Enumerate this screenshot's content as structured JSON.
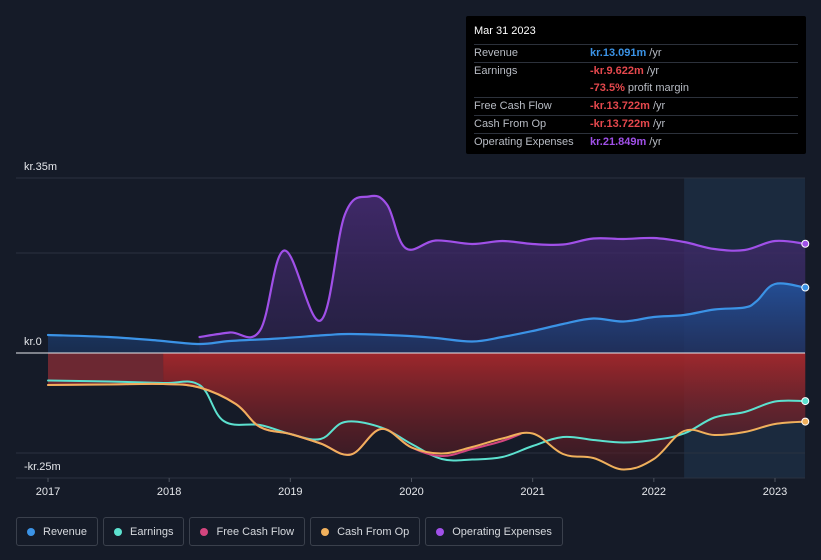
{
  "chart_data": {
    "type": "area",
    "y_axis_labels": {
      "top": "kr.35m",
      "zero": "kr.0",
      "bottom": "-kr.25m"
    },
    "ylim": [
      -25,
      35
    ],
    "xlim": [
      2016.9,
      2023.25
    ],
    "x_ticks": [
      {
        "value": 2017,
        "label": "2017"
      },
      {
        "value": 2018,
        "label": "2018"
      },
      {
        "value": 2019,
        "label": "2019"
      },
      {
        "value": 2020,
        "label": "2020"
      },
      {
        "value": 2021,
        "label": "2021"
      },
      {
        "value": 2022,
        "label": "2022"
      },
      {
        "value": 2023,
        "label": "2023"
      }
    ],
    "highlight_start": 2022.25,
    "series": [
      {
        "name": "Revenue",
        "key": "revenue",
        "color": "#3b93e6",
        "fill": true,
        "points": [
          [
            2017,
            3.6
          ],
          [
            2017.5,
            3.2
          ],
          [
            2017.9,
            2.5
          ],
          [
            2018.25,
            1.8
          ],
          [
            2018.5,
            2.4
          ],
          [
            2018.9,
            2.9
          ],
          [
            2019.3,
            3.6
          ],
          [
            2019.5,
            3.8
          ],
          [
            2019.9,
            3.5
          ],
          [
            2020.2,
            3.0
          ],
          [
            2020.5,
            2.3
          ],
          [
            2020.75,
            3.2
          ],
          [
            2021,
            4.4
          ],
          [
            2021.25,
            5.8
          ],
          [
            2021.5,
            6.9
          ],
          [
            2021.75,
            6.3
          ],
          [
            2022,
            7.2
          ],
          [
            2022.25,
            7.6
          ],
          [
            2022.5,
            8.7
          ],
          [
            2022.75,
            9.1
          ],
          [
            2022.85,
            10.4
          ],
          [
            2023,
            13.8
          ],
          [
            2023.25,
            13.09
          ]
        ]
      },
      {
        "name": "Operating Expenses",
        "key": "opex",
        "color": "#a050e8",
        "fill": true,
        "points": [
          [
            2018.25,
            3.2
          ],
          [
            2018.5,
            4.1
          ],
          [
            2018.75,
            4.5
          ],
          [
            2018.95,
            20.5
          ],
          [
            2019.25,
            6.5
          ],
          [
            2019.45,
            27.7
          ],
          [
            2019.65,
            31.3
          ],
          [
            2019.8,
            29.6
          ],
          [
            2019.95,
            21.0
          ],
          [
            2020.2,
            22.5
          ],
          [
            2020.5,
            21.8
          ],
          [
            2020.75,
            22.4
          ],
          [
            2021,
            21.8
          ],
          [
            2021.25,
            21.7
          ],
          [
            2021.5,
            22.9
          ],
          [
            2021.75,
            22.8
          ],
          [
            2022,
            23.0
          ],
          [
            2022.25,
            22.2
          ],
          [
            2022.5,
            20.8
          ],
          [
            2022.75,
            20.6
          ],
          [
            2023,
            22.4
          ],
          [
            2023.25,
            21.85
          ]
        ]
      },
      {
        "name": "Earnings",
        "key": "earnings",
        "color": "#5ce1cf",
        "fill": false,
        "points": [
          [
            2017,
            -5.5
          ],
          [
            2017.5,
            -5.7
          ],
          [
            2017.95,
            -6.0
          ],
          [
            2018.25,
            -6.4
          ],
          [
            2018.45,
            -13.6
          ],
          [
            2018.75,
            -14.4
          ],
          [
            2019.0,
            -16.2
          ],
          [
            2019.25,
            -17.2
          ],
          [
            2019.45,
            -13.8
          ],
          [
            2019.75,
            -14.9
          ],
          [
            2020.0,
            -18.2
          ],
          [
            2020.25,
            -21.2
          ],
          [
            2020.5,
            -21.3
          ],
          [
            2020.75,
            -20.8
          ],
          [
            2021,
            -18.6
          ],
          [
            2021.25,
            -16.8
          ],
          [
            2021.5,
            -17.4
          ],
          [
            2021.75,
            -17.9
          ],
          [
            2022,
            -17.4
          ],
          [
            2022.25,
            -16.1
          ],
          [
            2022.5,
            -12.9
          ],
          [
            2022.75,
            -11.8
          ],
          [
            2023,
            -9.7
          ],
          [
            2023.25,
            -9.62
          ]
        ]
      },
      {
        "name": "Free Cash Flow",
        "key": "fcf",
        "color": "#d3457e",
        "fill": false,
        "points": [
          [
            2017,
            -6.4
          ],
          [
            2017.5,
            -6.3
          ],
          [
            2017.95,
            -6.2
          ],
          [
            2018.25,
            -6.9
          ],
          [
            2018.55,
            -10.2
          ],
          [
            2018.75,
            -14.8
          ],
          [
            2019.0,
            -16.2
          ],
          [
            2019.25,
            -18.1
          ],
          [
            2019.5,
            -20.3
          ],
          [
            2019.75,
            -15.2
          ],
          [
            2020.0,
            -18.9
          ],
          [
            2020.25,
            -20.6
          ],
          [
            2020.5,
            -19.2
          ],
          [
            2020.75,
            -17.6
          ],
          [
            2020.9,
            -16.2
          ]
        ]
      },
      {
        "name": "Cash From Op",
        "key": "cfo",
        "color": "#f0b05c",
        "fill": false,
        "points": [
          [
            2017,
            -6.4
          ],
          [
            2017.5,
            -6.3
          ],
          [
            2017.95,
            -6.2
          ],
          [
            2018.25,
            -6.9
          ],
          [
            2018.55,
            -10.2
          ],
          [
            2018.75,
            -14.8
          ],
          [
            2019.0,
            -16.2
          ],
          [
            2019.25,
            -18.1
          ],
          [
            2019.5,
            -20.3
          ],
          [
            2019.75,
            -15.2
          ],
          [
            2020.0,
            -18.9
          ],
          [
            2020.25,
            -20.1
          ],
          [
            2020.5,
            -18.8
          ],
          [
            2020.75,
            -17.1
          ],
          [
            2021,
            -16.1
          ],
          [
            2021.25,
            -20.2
          ],
          [
            2021.5,
            -21.0
          ],
          [
            2021.75,
            -23.3
          ],
          [
            2022,
            -21.2
          ],
          [
            2022.25,
            -15.6
          ],
          [
            2022.5,
            -16.4
          ],
          [
            2022.75,
            -15.8
          ],
          [
            2023,
            -14.2
          ],
          [
            2023.25,
            -13.72
          ]
        ]
      }
    ]
  },
  "tooltip": {
    "date": "Mar 31 2023",
    "rows": [
      {
        "label": "Revenue",
        "value": "kr.13.091m",
        "unit": "/yr",
        "color": "#3b93e6"
      },
      {
        "label": "Earnings",
        "value": "-kr.9.622m",
        "unit": "/yr",
        "color": "#e5484d"
      },
      {
        "label": "",
        "value": "-73.5%",
        "unit": "profit margin",
        "color": "#e5484d",
        "sub": true
      },
      {
        "label": "Free Cash Flow",
        "value": "-kr.13.722m",
        "unit": "/yr",
        "color": "#e5484d"
      },
      {
        "label": "Cash From Op",
        "value": "-kr.13.722m",
        "unit": "/yr",
        "color": "#e5484d"
      },
      {
        "label": "Operating Expenses",
        "value": "kr.21.849m",
        "unit": "/yr",
        "color": "#a050e8"
      }
    ]
  },
  "legend": [
    {
      "label": "Revenue",
      "color": "#3b93e6"
    },
    {
      "label": "Earnings",
      "color": "#5ce1cf"
    },
    {
      "label": "Free Cash Flow",
      "color": "#d3457e"
    },
    {
      "label": "Cash From Op",
      "color": "#f0b05c"
    },
    {
      "label": "Operating Expenses",
      "color": "#a050e8"
    }
  ]
}
